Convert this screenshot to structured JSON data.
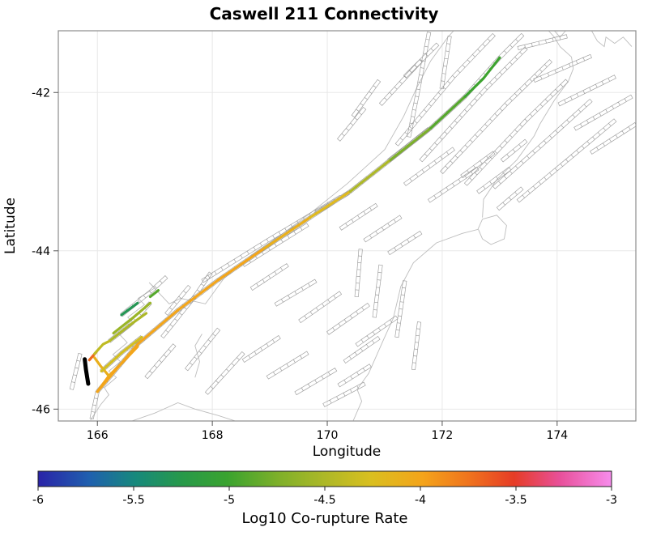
{
  "chart_data": {
    "type": "line",
    "subtype": "fault-connectivity-map",
    "title": "Caswell 211 Connectivity",
    "xlabel": "Longitude",
    "ylabel": "Latitude",
    "xlim": [
      165.32,
      175.37
    ],
    "ylim": [
      -46.15,
      -41.22
    ],
    "xticks": [
      166,
      168,
      170,
      172,
      174
    ],
    "yticks": [
      -42,
      -44,
      -46
    ],
    "grid": true,
    "legend_position": "none",
    "colorbar": {
      "label": "Log10 Co-rupture Rate",
      "min": -6,
      "max": -3,
      "ticks": [
        -6,
        -5.5,
        -5,
        -4.5,
        -4,
        -3.5,
        -3
      ],
      "orientation": "horizontal",
      "position": "bottom",
      "stops": [
        {
          "pos": 0.0,
          "color": "#2a23a8"
        },
        {
          "pos": 0.09,
          "color": "#1f60ae"
        },
        {
          "pos": 0.17,
          "color": "#17897c"
        },
        {
          "pos": 0.25,
          "color": "#27994a"
        },
        {
          "pos": 0.33,
          "color": "#3aa32f"
        },
        {
          "pos": 0.42,
          "color": "#7fb02a"
        },
        {
          "pos": 0.5,
          "color": "#adb827"
        },
        {
          "pos": 0.58,
          "color": "#d9bf1f"
        },
        {
          "pos": 0.67,
          "color": "#f4a41a"
        },
        {
          "pos": 0.75,
          "color": "#f0741d"
        },
        {
          "pos": 0.83,
          "color": "#e63c26"
        },
        {
          "pos": 0.91,
          "color": "#e8509a"
        },
        {
          "pos": 1.0,
          "color": "#f78cec"
        }
      ]
    },
    "source_fault": {
      "name": "Caswell",
      "color": "#000000",
      "width": 5,
      "points": [
        [
          165.78,
          -45.37
        ],
        [
          165.8,
          -45.5
        ],
        [
          165.84,
          -45.68
        ]
      ]
    },
    "ruptures": [
      {
        "value": -4.0,
        "width": 3.2,
        "points": [
          [
            166.0,
            -45.78
          ],
          [
            166.7,
            -45.18
          ],
          [
            167.4,
            -44.75
          ]
        ]
      },
      {
        "value": -4.0,
        "width": 3.2,
        "points": [
          [
            167.4,
            -44.75
          ],
          [
            168.1,
            -44.37
          ],
          [
            168.9,
            -43.97
          ]
        ]
      },
      {
        "value": -4.1,
        "width": 3.2,
        "points": [
          [
            168.9,
            -43.97
          ],
          [
            169.7,
            -43.58
          ]
        ]
      },
      {
        "value": -4.2,
        "width": 3.2,
        "points": [
          [
            169.7,
            -43.58
          ],
          [
            170.4,
            -43.25
          ]
        ]
      },
      {
        "value": -4.5,
        "width": 3.2,
        "points": [
          [
            170.4,
            -43.25
          ],
          [
            171.1,
            -42.85
          ]
        ]
      },
      {
        "value": -4.75,
        "width": 3.2,
        "points": [
          [
            171.1,
            -42.85
          ],
          [
            171.8,
            -42.45
          ]
        ]
      },
      {
        "value": -4.9,
        "width": 3.2,
        "points": [
          [
            171.8,
            -42.45
          ],
          [
            172.4,
            -42.05
          ]
        ]
      },
      {
        "value": -5.0,
        "width": 3.2,
        "points": [
          [
            172.4,
            -42.05
          ],
          [
            172.72,
            -41.82
          ],
          [
            173.0,
            -41.56
          ]
        ]
      },
      {
        "value": -4.0,
        "width": 3.2,
        "points": [
          [
            166.0,
            -45.78
          ],
          [
            166.2,
            -45.58
          ],
          [
            166.45,
            -45.4
          ],
          [
            166.7,
            -45.21
          ]
        ]
      },
      {
        "value": -4.1,
        "width": 3.2,
        "points": [
          [
            166.2,
            -45.58
          ],
          [
            166.05,
            -45.45
          ],
          [
            165.95,
            -45.35
          ]
        ]
      },
      {
        "value": -4.3,
        "width": 3.2,
        "points": [
          [
            166.07,
            -45.52
          ],
          [
            166.42,
            -45.29
          ],
          [
            166.77,
            -45.09
          ]
        ]
      },
      {
        "value": -4.5,
        "width": 3.2,
        "points": [
          [
            166.21,
            -45.14
          ],
          [
            166.56,
            -44.94
          ],
          [
            166.85,
            -44.79
          ]
        ]
      },
      {
        "value": -4.6,
        "width": 3.2,
        "points": [
          [
            166.28,
            -45.04
          ],
          [
            166.63,
            -44.84
          ],
          [
            166.92,
            -44.66
          ]
        ]
      },
      {
        "value": -5.3,
        "width": 3.2,
        "points": [
          [
            166.42,
            -44.81
          ],
          [
            166.7,
            -44.66
          ]
        ]
      },
      {
        "value": -4.9,
        "width": 3.2,
        "points": [
          [
            166.92,
            -44.58
          ],
          [
            167.06,
            -44.5
          ]
        ]
      },
      {
        "value": -3.7,
        "width": 3.2,
        "points": [
          [
            165.86,
            -45.38
          ],
          [
            165.98,
            -45.28
          ]
        ]
      },
      {
        "value": -4.4,
        "width": 3.2,
        "points": [
          [
            165.95,
            -45.3
          ],
          [
            166.1,
            -45.18
          ],
          [
            166.21,
            -45.14
          ]
        ]
      }
    ],
    "background_faults": [
      [
        [
          171.21,
          -42.66
        ],
        [
          172.2,
          -41.8
        ],
        [
          172.9,
          -41.27
        ]
      ],
      [
        [
          171.63,
          -42.86
        ],
        [
          172.76,
          -41.95
        ],
        [
          173.46,
          -41.44
        ]
      ],
      [
        [
          171.99,
          -43.01
        ],
        [
          173.11,
          -42.15
        ],
        [
          173.89,
          -41.6
        ]
      ],
      [
        [
          172.41,
          -43.16
        ],
        [
          173.46,
          -42.35
        ],
        [
          174.17,
          -41.85
        ]
      ],
      [
        [
          172.9,
          -43.2
        ],
        [
          173.89,
          -42.56
        ],
        [
          174.59,
          -42.1
        ]
      ],
      [
        [
          173.32,
          -43.37
        ],
        [
          174.17,
          -42.86
        ],
        [
          175.01,
          -42.35
        ]
      ],
      [
        [
          173.32,
          -41.44
        ],
        [
          174.17,
          -41.29
        ]
      ],
      [
        [
          173.6,
          -41.85
        ],
        [
          174.59,
          -41.54
        ]
      ],
      [
        [
          174.03,
          -42.15
        ],
        [
          175.01,
          -41.8
        ]
      ],
      [
        [
          174.31,
          -42.46
        ],
        [
          175.3,
          -42.05
        ]
      ],
      [
        [
          174.59,
          -42.76
        ],
        [
          175.37,
          -42.4
        ]
      ],
      [
        [
          170.93,
          -42.15
        ],
        [
          171.63,
          -41.6
        ]
      ],
      [
        [
          171.35,
          -41.8
        ],
        [
          171.92,
          -41.39
        ]
      ],
      [
        [
          171.77,
          -41.24
        ],
        [
          171.56,
          -42.05
        ],
        [
          171.42,
          -42.56
        ]
      ],
      [
        [
          172.13,
          -41.29
        ],
        [
          171.99,
          -41.95
        ]
      ],
      [
        [
          170.45,
          -42.3
        ],
        [
          170.9,
          -41.85
        ]
      ],
      [
        [
          170.2,
          -42.6
        ],
        [
          170.65,
          -42.2
        ]
      ],
      [
        [
          169.8,
          -43.52
        ],
        [
          170.37,
          -43.27
        ]
      ],
      [
        [
          170.23,
          -43.72
        ],
        [
          170.86,
          -43.42
        ]
      ],
      [
        [
          170.65,
          -43.87
        ],
        [
          171.28,
          -43.57
        ]
      ],
      [
        [
          171.07,
          -44.03
        ],
        [
          171.63,
          -43.77
        ]
      ],
      [
        [
          171.07,
          -42.86
        ],
        [
          171.77,
          -42.46
        ]
      ],
      [
        [
          171.35,
          -43.16
        ],
        [
          172.2,
          -42.71
        ]
      ],
      [
        [
          171.77,
          -43.37
        ],
        [
          172.62,
          -42.96
        ]
      ],
      [
        [
          168.68,
          -44.48
        ],
        [
          169.31,
          -44.18
        ]
      ],
      [
        [
          169.1,
          -44.68
        ],
        [
          169.8,
          -44.38
        ]
      ],
      [
        [
          169.52,
          -44.89
        ],
        [
          170.23,
          -44.53
        ]
      ],
      [
        [
          170.01,
          -45.04
        ],
        [
          170.72,
          -44.68
        ]
      ],
      [
        [
          170.51,
          -45.19
        ],
        [
          171.21,
          -44.84
        ]
      ],
      [
        [
          168.54,
          -45.39
        ],
        [
          169.17,
          -45.09
        ]
      ],
      [
        [
          168.96,
          -45.6
        ],
        [
          169.66,
          -45.29
        ]
      ],
      [
        [
          169.45,
          -45.8
        ],
        [
          170.15,
          -45.5
        ]
      ],
      [
        [
          169.94,
          -45.95
        ],
        [
          170.65,
          -45.68
        ]
      ],
      [
        [
          170.58,
          -43.98
        ],
        [
          170.51,
          -44.58
        ]
      ],
      [
        [
          170.93,
          -44.18
        ],
        [
          170.82,
          -44.84
        ]
      ],
      [
        [
          171.35,
          -44.38
        ],
        [
          171.21,
          -45.09
        ]
      ],
      [
        [
          171.6,
          -44.9
        ],
        [
          171.5,
          -45.5
        ]
      ],
      [
        [
          170.3,
          -45.4
        ],
        [
          170.9,
          -45.1
        ]
      ],
      [
        [
          167.13,
          -45.09
        ],
        [
          167.69,
          -44.58
        ],
        [
          167.97,
          -44.28
        ]
      ],
      [
        [
          167.55,
          -45.5
        ],
        [
          168.11,
          -44.99
        ]
      ],
      [
        [
          167.9,
          -45.8
        ],
        [
          168.54,
          -45.29
        ]
      ],
      [
        [
          166.85,
          -45.6
        ],
        [
          167.34,
          -45.19
        ]
      ],
      [
        [
          167.83,
          -44.38
        ],
        [
          168.96,
          -43.87
        ],
        [
          170.23,
          -43.32
        ]
      ],
      [
        [
          168.54,
          -44.18
        ],
        [
          169.66,
          -43.67
        ]
      ],
      [
        [
          166.0,
          -45.78
        ],
        [
          166.7,
          -45.18
        ],
        [
          167.4,
          -44.75
        ],
        [
          168.1,
          -44.37
        ],
        [
          168.9,
          -43.97
        ],
        [
          169.7,
          -43.58
        ],
        [
          170.4,
          -43.25
        ],
        [
          171.1,
          -42.85
        ],
        [
          171.8,
          -42.45
        ],
        [
          172.4,
          -42.05
        ],
        [
          173.0,
          -41.56
        ],
        [
          173.4,
          -41.27
        ]
      ],
      [
        [
          165.9,
          -46.12
        ],
        [
          166.0,
          -45.78
        ]
      ],
      [
        [
          165.55,
          -45.75
        ],
        [
          165.7,
          -45.3
        ]
      ],
      [
        [
          166.07,
          -45.52
        ],
        [
          166.42,
          -45.29
        ],
        [
          166.77,
          -45.09
        ]
      ],
      [
        [
          166.21,
          -45.14
        ],
        [
          166.56,
          -44.94
        ],
        [
          166.92,
          -44.66
        ]
      ],
      [
        [
          166.42,
          -44.81
        ],
        [
          166.92,
          -44.52
        ],
        [
          167.2,
          -44.33
        ]
      ],
      [
        [
          167.2,
          -44.8
        ],
        [
          167.6,
          -44.45
        ]
      ],
      [
        [
          170.2,
          -45.7
        ],
        [
          170.75,
          -45.45
        ]
      ],
      [
        [
          172.34,
          -43.06
        ],
        [
          172.9,
          -42.76
        ]
      ],
      [
        [
          172.62,
          -43.26
        ],
        [
          173.18,
          -42.96
        ]
      ],
      [
        [
          173.04,
          -42.86
        ],
        [
          173.46,
          -42.61
        ]
      ],
      [
        [
          172.97,
          -43.47
        ],
        [
          173.39,
          -43.21
        ]
      ]
    ],
    "coastline": [
      [
        [
          165.88,
          -46.14
        ],
        [
          166.06,
          -45.94
        ],
        [
          166.2,
          -45.82
        ],
        [
          166.12,
          -45.73
        ],
        [
          166.33,
          -45.6
        ],
        [
          166.2,
          -45.52
        ],
        [
          166.4,
          -45.4
        ],
        [
          166.27,
          -45.31
        ],
        [
          166.52,
          -45.16
        ],
        [
          166.39,
          -45.06
        ],
        [
          166.64,
          -44.92
        ],
        [
          166.53,
          -44.84
        ],
        [
          166.82,
          -44.68
        ],
        [
          166.71,
          -44.6
        ],
        [
          167.0,
          -44.47
        ],
        [
          166.9,
          -44.4
        ],
        [
          167.25,
          -44.67
        ],
        [
          167.45,
          -44.6
        ],
        [
          167.88,
          -44.67
        ],
        [
          168.2,
          -44.35
        ],
        [
          168.7,
          -44.05
        ],
        [
          169.1,
          -43.85
        ],
        [
          169.75,
          -43.5
        ],
        [
          170.35,
          -43.15
        ],
        [
          171.0,
          -42.72
        ],
        [
          171.33,
          -42.3
        ],
        [
          171.55,
          -41.95
        ],
        [
          171.8,
          -41.6
        ],
        [
          172.1,
          -41.3
        ],
        [
          172.2,
          -41.22
        ]
      ],
      [
        [
          166.6,
          -46.15
        ],
        [
          167.0,
          -46.05
        ],
        [
          167.4,
          -45.92
        ],
        [
          167.7,
          -46.0
        ],
        [
          168.1,
          -46.08
        ],
        [
          168.4,
          -46.15
        ]
      ],
      [
        [
          170.45,
          -46.15
        ],
        [
          170.6,
          -45.9
        ],
        [
          170.52,
          -45.75
        ],
        [
          170.72,
          -45.55
        ],
        [
          170.98,
          -45.12
        ],
        [
          171.15,
          -44.85
        ],
        [
          171.28,
          -44.45
        ],
        [
          171.5,
          -44.15
        ],
        [
          171.9,
          -43.9
        ],
        [
          172.35,
          -43.78
        ],
        [
          172.62,
          -43.73
        ],
        [
          172.7,
          -43.6
        ],
        [
          172.95,
          -43.55
        ],
        [
          173.12,
          -43.68
        ],
        [
          173.08,
          -43.85
        ],
        [
          172.85,
          -43.92
        ],
        [
          172.7,
          -43.85
        ],
        [
          172.63,
          -43.73
        ]
      ],
      [
        [
          172.7,
          -43.58
        ],
        [
          172.72,
          -43.35
        ],
        [
          172.95,
          -43.1
        ],
        [
          173.3,
          -42.85
        ],
        [
          173.6,
          -42.55
        ],
        [
          173.7,
          -42.4
        ],
        [
          173.95,
          -42.1
        ],
        [
          174.2,
          -41.85
        ],
        [
          174.28,
          -41.7
        ],
        [
          174.25,
          -41.55
        ],
        [
          174.05,
          -41.42
        ],
        [
          173.95,
          -41.3
        ],
        [
          173.85,
          -41.22
        ]
      ],
      [
        [
          174.6,
          -41.22
        ],
        [
          174.7,
          -41.35
        ],
        [
          174.82,
          -41.42
        ],
        [
          174.85,
          -41.3
        ],
        [
          175.0,
          -41.38
        ],
        [
          175.15,
          -41.3
        ],
        [
          175.3,
          -41.42
        ]
      ],
      [
        [
          173.95,
          -41.22
        ],
        [
          174.05,
          -41.3
        ],
        [
          174.15,
          -41.22
        ]
      ],
      [
        [
          167.7,
          -45.6
        ],
        [
          167.78,
          -45.4
        ],
        [
          167.7,
          -45.2
        ],
        [
          167.82,
          -45.05
        ]
      ]
    ]
  }
}
